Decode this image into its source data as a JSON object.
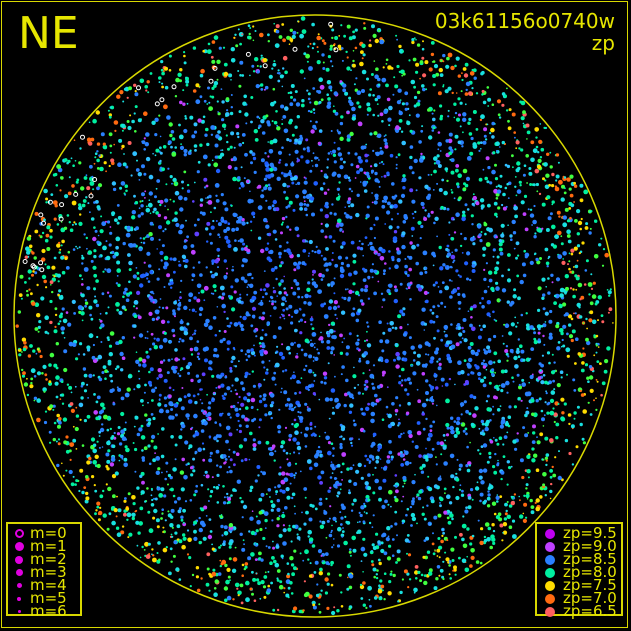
{
  "header": {
    "direction": "NE",
    "image_id": "03k61156o0740w",
    "quantity": "zp"
  },
  "chart_data": {
    "type": "scatter",
    "title": "03k61156o0740w",
    "subtitle": "zp",
    "color_by": "zp",
    "size_by": "m",
    "description_of_distribution": "",
    "magnitude_legend": [
      {
        "label": "m=0",
        "hollow": true
      },
      {
        "label": "m=1"
      },
      {
        "label": "m=2"
      },
      {
        "label": "m=3"
      },
      {
        "label": "m=4"
      },
      {
        "label": "m=5"
      },
      {
        "label": "m=6"
      }
    ],
    "zp_legend": [
      {
        "label": "zp=9.5",
        "color": "#c000f0"
      },
      {
        "label": "zp=9.0",
        "color": "#c040ff"
      },
      {
        "label": "zp=8.5",
        "color": "#2a80ff"
      },
      {
        "label": "zp=8.0",
        "color": "#00f0a0"
      },
      {
        "label": "zp=7.5",
        "color": "#ffdc00"
      },
      {
        "label": "zp=7.0",
        "color": "#ff6a10"
      },
      {
        "label": "zp=6.5",
        "color": "#ff6060"
      }
    ]
  },
  "colors": {
    "frame": "#d8d800",
    "text": "#e6e600",
    "legend_symbol": "#e000e0"
  }
}
